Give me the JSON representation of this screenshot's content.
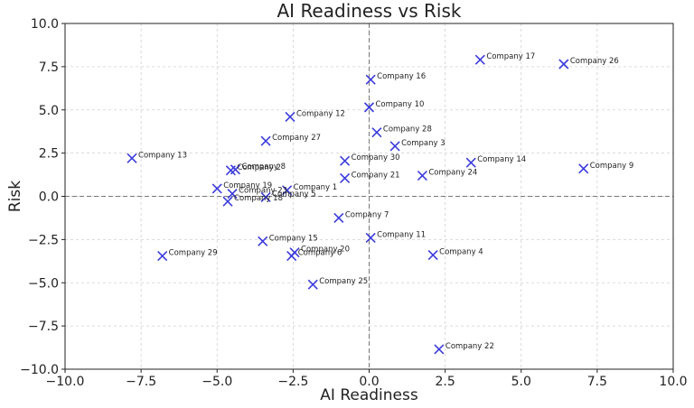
{
  "chart_data": {
    "type": "scatter",
    "title": "AI Readiness vs Risk",
    "xlabel": "AI Readiness",
    "ylabel": "Risk",
    "xlim": [
      -10,
      10
    ],
    "ylim": [
      -10,
      10
    ],
    "xticks": [
      -10,
      -7.5,
      -5,
      -2.5,
      0,
      2.5,
      5,
      7.5,
      10
    ],
    "yticks": [
      -10,
      -7.5,
      -5,
      -2.5,
      0,
      2.5,
      5,
      7.5,
      10
    ],
    "xtick_labels": [
      "−10.0",
      "−7.5",
      "−5.0",
      "−2.5",
      "0.0",
      "2.5",
      "5.0",
      "7.5",
      "10.0"
    ],
    "ytick_labels": [
      "−10.0",
      "−7.5",
      "−5.0",
      "−2.5",
      "0.0",
      "2.5",
      "5.0",
      "7.5",
      "10.0"
    ],
    "grid": true,
    "reference_lines": {
      "x": 0,
      "y": 0
    },
    "marker": "x",
    "marker_color": "#3b3bdc",
    "points": [
      {
        "label": "Company 17",
        "x": 3.65,
        "y": 7.9
      },
      {
        "label": "Company 26",
        "x": 6.4,
        "y": 7.65
      },
      {
        "label": "Company 16",
        "x": 0.05,
        "y": 6.75
      },
      {
        "label": "Company 10",
        "x": 0.0,
        "y": 5.15
      },
      {
        "label": "Company 12",
        "x": -2.6,
        "y": 4.6
      },
      {
        "label": "Company 28",
        "x": 0.25,
        "y": 3.7
      },
      {
        "label": "Company 27",
        "x": -3.4,
        "y": 3.2
      },
      {
        "label": "Company 3",
        "x": 0.85,
        "y": 2.9
      },
      {
        "label": "Company 13",
        "x": -7.8,
        "y": 2.2
      },
      {
        "label": "Company 30",
        "x": -0.8,
        "y": 2.05
      },
      {
        "label": "Company 14",
        "x": 3.35,
        "y": 1.95
      },
      {
        "label": "Company 9",
        "x": 7.05,
        "y": 1.6
      },
      {
        "label": "Company 8",
        "x": -4.4,
        "y": 1.55
      },
      {
        "label": "Company 2",
        "x": -4.55,
        "y": 1.5
      },
      {
        "label": "Company 24",
        "x": 1.75,
        "y": 1.2
      },
      {
        "label": "Company 21",
        "x": -0.8,
        "y": 1.05
      },
      {
        "label": "Company 19",
        "x": -5.0,
        "y": 0.45
      },
      {
        "label": "Company 1",
        "x": -2.7,
        "y": 0.35
      },
      {
        "label": "Company 23",
        "x": -4.5,
        "y": 0.15
      },
      {
        "label": "Company 5",
        "x": -3.4,
        "y": -0.05
      },
      {
        "label": "Company 18",
        "x": -4.65,
        "y": -0.3
      },
      {
        "label": "Company 7",
        "x": -1.0,
        "y": -1.25
      },
      {
        "label": "Company 11",
        "x": 0.05,
        "y": -2.4
      },
      {
        "label": "Company 15",
        "x": -3.5,
        "y": -2.6
      },
      {
        "label": "Company 20",
        "x": -2.45,
        "y": -3.25
      },
      {
        "label": "Company 6",
        "x": -2.55,
        "y": -3.45
      },
      {
        "label": "Company 29",
        "x": -6.8,
        "y": -3.45
      },
      {
        "label": "Company 4",
        "x": 2.1,
        "y": -3.4
      },
      {
        "label": "Company 25",
        "x": -1.85,
        "y": -5.1
      },
      {
        "label": "Company 22",
        "x": 2.3,
        "y": -8.85
      }
    ]
  }
}
